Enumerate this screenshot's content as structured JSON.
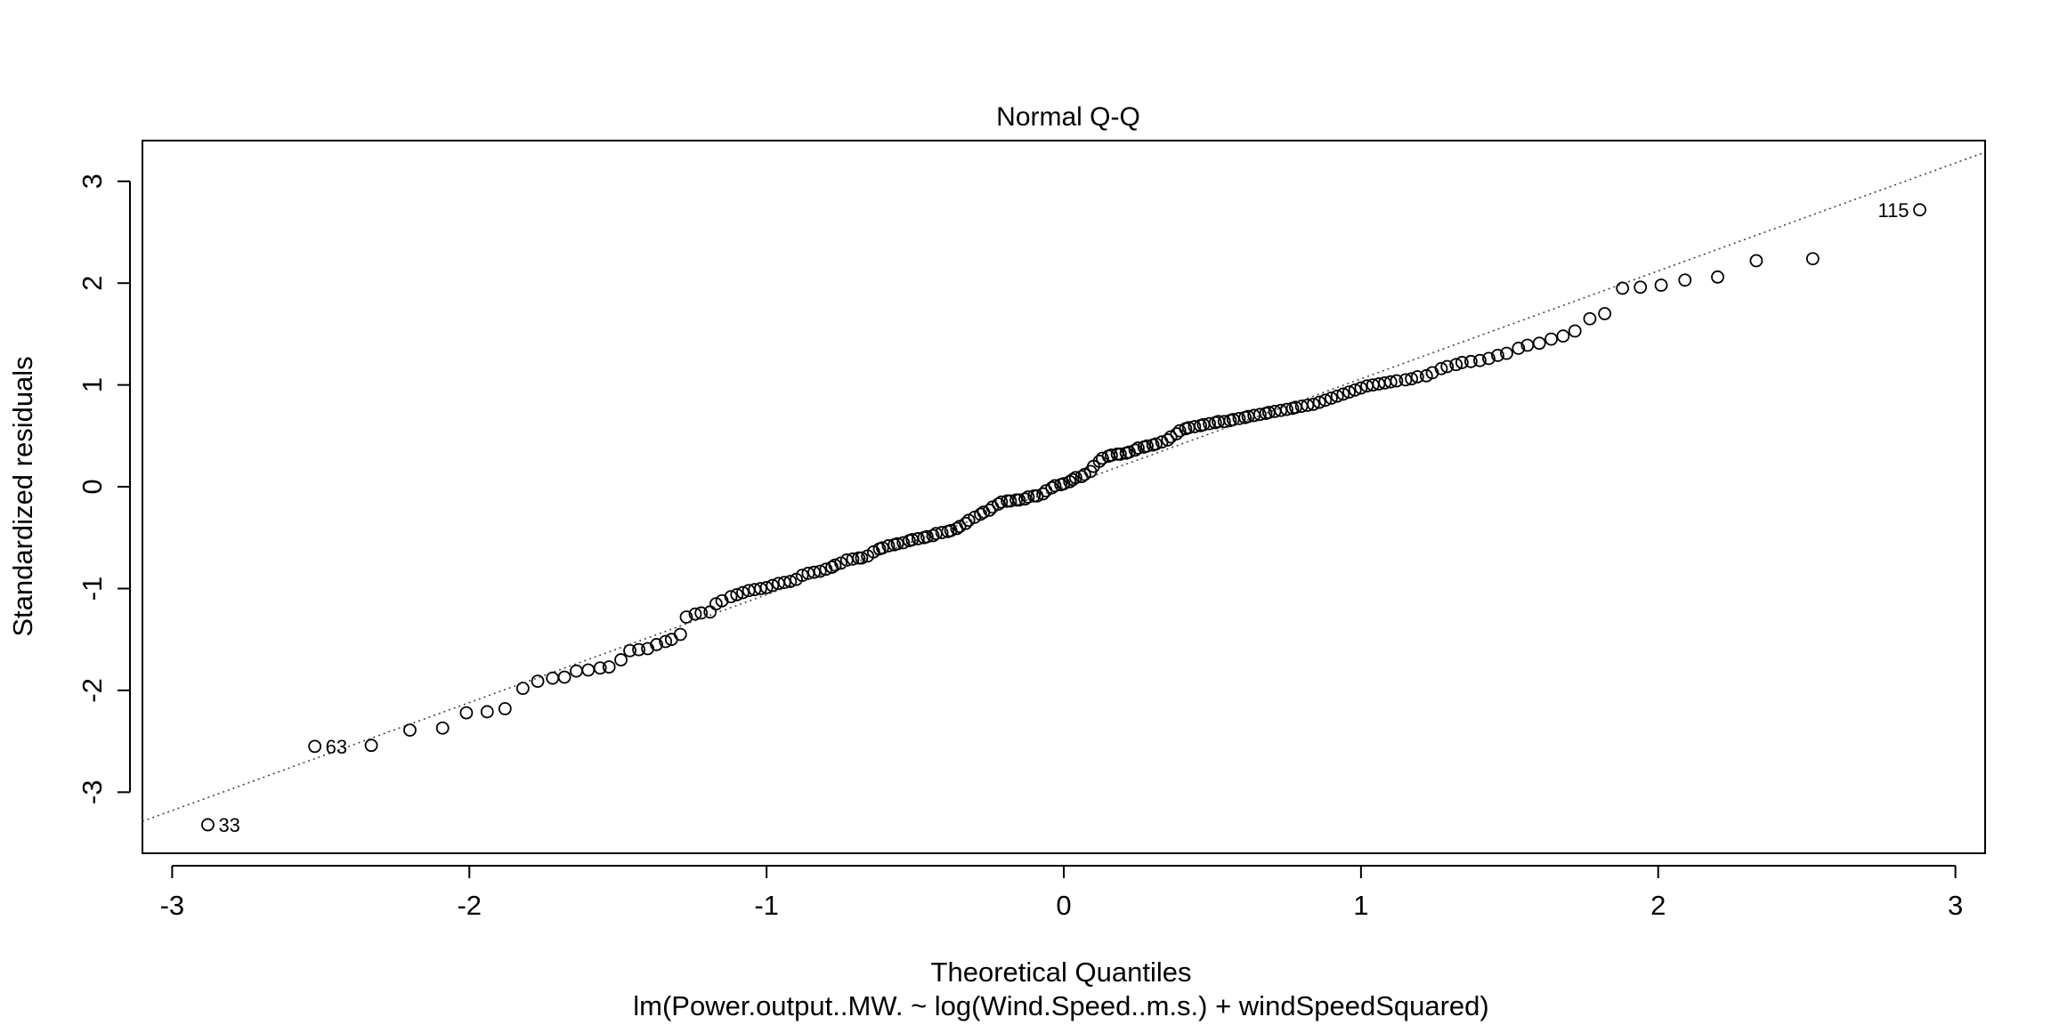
{
  "chart_data": {
    "type": "scatter",
    "title": "Normal Q-Q",
    "xlabel": "Theoretical Quantiles",
    "ylabel": "Standardized residuals",
    "subtitle": "lm(Power.output..MW. ~ log(Wind.Speed..m.s.) + windSpeedSquared)",
    "xlim": [
      -3.1,
      3.1
    ],
    "ylim": [
      -3.6,
      3.4
    ],
    "xticks": [
      "-3",
      "-2",
      "-1",
      "0",
      "1",
      "2",
      "3"
    ],
    "yticks": [
      "-3",
      "-2",
      "-1",
      "0",
      "1",
      "2",
      "3"
    ],
    "grid": false,
    "reference_line": {
      "style": "dotted",
      "intercept": 0.0,
      "slope": 1.06
    },
    "labeled_points": [
      {
        "label": "33",
        "x": -2.88,
        "y": -3.32
      },
      {
        "label": "63",
        "x": -2.52,
        "y": -2.55
      },
      {
        "label": "115",
        "x": 2.88,
        "y": 2.72
      }
    ],
    "points": [
      [
        -2.88,
        -3.32
      ],
      [
        -2.52,
        -2.55
      ],
      [
        -2.33,
        -2.54
      ],
      [
        -2.2,
        -2.39
      ],
      [
        -2.09,
        -2.37
      ],
      [
        -2.01,
        -2.22
      ],
      [
        -1.94,
        -2.21
      ],
      [
        -1.88,
        -2.18
      ],
      [
        -1.82,
        -1.98
      ],
      [
        -1.77,
        -1.91
      ],
      [
        -1.72,
        -1.88
      ],
      [
        -1.68,
        -1.87
      ],
      [
        -1.64,
        -1.81
      ],
      [
        -1.6,
        -1.8
      ],
      [
        -1.56,
        -1.78
      ],
      [
        -1.53,
        -1.77
      ],
      [
        -1.49,
        -1.7
      ],
      [
        -1.46,
        -1.61
      ],
      [
        -1.43,
        -1.6
      ],
      [
        -1.4,
        -1.59
      ],
      [
        -1.37,
        -1.55
      ],
      [
        -1.34,
        -1.52
      ],
      [
        -1.32,
        -1.5
      ],
      [
        -1.29,
        -1.45
      ],
      [
        -1.27,
        -1.28
      ],
      [
        -1.24,
        -1.25
      ],
      [
        -1.22,
        -1.24
      ],
      [
        -1.19,
        -1.23
      ],
      [
        -1.17,
        -1.15
      ],
      [
        -1.15,
        -1.12
      ],
      [
        -1.12,
        -1.08
      ],
      [
        -1.1,
        -1.06
      ],
      [
        -1.08,
        -1.04
      ],
      [
        -1.06,
        -1.02
      ],
      [
        -1.04,
        -1.01
      ],
      [
        -1.02,
        -1.0
      ],
      [
        -1.0,
        -0.99
      ],
      [
        -0.98,
        -0.97
      ],
      [
        -0.96,
        -0.95
      ],
      [
        -0.94,
        -0.94
      ],
      [
        -0.92,
        -0.93
      ],
      [
        -0.9,
        -0.91
      ],
      [
        -0.88,
        -0.87
      ],
      [
        -0.86,
        -0.85
      ],
      [
        -0.84,
        -0.84
      ],
      [
        -0.82,
        -0.83
      ],
      [
        -0.8,
        -0.81
      ],
      [
        -0.78,
        -0.79
      ],
      [
        -0.77,
        -0.77
      ],
      [
        -0.75,
        -0.75
      ],
      [
        -0.73,
        -0.72
      ],
      [
        -0.71,
        -0.71
      ],
      [
        -0.69,
        -0.7
      ],
      [
        -0.68,
        -0.7
      ],
      [
        -0.66,
        -0.68
      ],
      [
        -0.64,
        -0.64
      ],
      [
        -0.62,
        -0.61
      ],
      [
        -0.61,
        -0.6
      ],
      [
        -0.59,
        -0.58
      ],
      [
        -0.57,
        -0.57
      ],
      [
        -0.56,
        -0.56
      ],
      [
        -0.54,
        -0.55
      ],
      [
        -0.52,
        -0.53
      ],
      [
        -0.51,
        -0.52
      ],
      [
        -0.49,
        -0.51
      ],
      [
        -0.47,
        -0.5
      ],
      [
        -0.46,
        -0.49
      ],
      [
        -0.44,
        -0.48
      ],
      [
        -0.43,
        -0.46
      ],
      [
        -0.41,
        -0.45
      ],
      [
        -0.39,
        -0.44
      ],
      [
        -0.38,
        -0.43
      ],
      [
        -0.36,
        -0.41
      ],
      [
        -0.35,
        -0.39
      ],
      [
        -0.33,
        -0.36
      ],
      [
        -0.32,
        -0.33
      ],
      [
        -0.3,
        -0.3
      ],
      [
        -0.28,
        -0.27
      ],
      [
        -0.27,
        -0.25
      ],
      [
        -0.25,
        -0.23
      ],
      [
        -0.24,
        -0.2
      ],
      [
        -0.22,
        -0.17
      ],
      [
        -0.21,
        -0.15
      ],
      [
        -0.19,
        -0.14
      ],
      [
        -0.18,
        -0.14
      ],
      [
        -0.16,
        -0.13
      ],
      [
        -0.15,
        -0.13
      ],
      [
        -0.13,
        -0.12
      ],
      [
        -0.12,
        -0.1
      ],
      [
        -0.1,
        -0.09
      ],
      [
        -0.09,
        -0.09
      ],
      [
        -0.07,
        -0.07
      ],
      [
        -0.06,
        -0.04
      ],
      [
        -0.04,
        -0.01
      ],
      [
        -0.03,
        0.01
      ],
      [
        -0.01,
        0.02
      ],
      [
        0.0,
        0.03
      ],
      [
        0.02,
        0.05
      ],
      [
        0.03,
        0.07
      ],
      [
        0.04,
        0.09
      ],
      [
        0.06,
        0.1
      ],
      [
        0.07,
        0.12
      ],
      [
        0.09,
        0.15
      ],
      [
        0.1,
        0.2
      ],
      [
        0.12,
        0.25
      ],
      [
        0.13,
        0.28
      ],
      [
        0.15,
        0.3
      ],
      [
        0.16,
        0.31
      ],
      [
        0.18,
        0.32
      ],
      [
        0.19,
        0.32
      ],
      [
        0.21,
        0.33
      ],
      [
        0.22,
        0.34
      ],
      [
        0.24,
        0.36
      ],
      [
        0.25,
        0.38
      ],
      [
        0.27,
        0.39
      ],
      [
        0.28,
        0.4
      ],
      [
        0.3,
        0.41
      ],
      [
        0.31,
        0.42
      ],
      [
        0.33,
        0.44
      ],
      [
        0.35,
        0.46
      ],
      [
        0.36,
        0.49
      ],
      [
        0.38,
        0.52
      ],
      [
        0.39,
        0.55
      ],
      [
        0.41,
        0.57
      ],
      [
        0.42,
        0.58
      ],
      [
        0.44,
        0.59
      ],
      [
        0.46,
        0.6
      ],
      [
        0.47,
        0.61
      ],
      [
        0.49,
        0.62
      ],
      [
        0.51,
        0.63
      ],
      [
        0.52,
        0.64
      ],
      [
        0.54,
        0.64
      ],
      [
        0.56,
        0.65
      ],
      [
        0.57,
        0.66
      ],
      [
        0.59,
        0.67
      ],
      [
        0.61,
        0.68
      ],
      [
        0.62,
        0.69
      ],
      [
        0.64,
        0.7
      ],
      [
        0.66,
        0.71
      ],
      [
        0.68,
        0.72
      ],
      [
        0.69,
        0.73
      ],
      [
        0.71,
        0.74
      ],
      [
        0.73,
        0.75
      ],
      [
        0.75,
        0.76
      ],
      [
        0.77,
        0.77
      ],
      [
        0.78,
        0.78
      ],
      [
        0.8,
        0.79
      ],
      [
        0.82,
        0.8
      ],
      [
        0.84,
        0.81
      ],
      [
        0.86,
        0.83
      ],
      [
        0.88,
        0.85
      ],
      [
        0.9,
        0.87
      ],
      [
        0.92,
        0.89
      ],
      [
        0.94,
        0.91
      ],
      [
        0.96,
        0.93
      ],
      [
        0.98,
        0.95
      ],
      [
        1.0,
        0.97
      ],
      [
        1.02,
        0.99
      ],
      [
        1.04,
        1.0
      ],
      [
        1.06,
        1.01
      ],
      [
        1.08,
        1.02
      ],
      [
        1.1,
        1.03
      ],
      [
        1.12,
        1.04
      ],
      [
        1.15,
        1.05
      ],
      [
        1.17,
        1.06
      ],
      [
        1.19,
        1.08
      ],
      [
        1.22,
        1.09
      ],
      [
        1.24,
        1.12
      ],
      [
        1.27,
        1.16
      ],
      [
        1.29,
        1.18
      ],
      [
        1.32,
        1.2
      ],
      [
        1.34,
        1.22
      ],
      [
        1.37,
        1.23
      ],
      [
        1.4,
        1.24
      ],
      [
        1.43,
        1.26
      ],
      [
        1.46,
        1.29
      ],
      [
        1.49,
        1.31
      ],
      [
        1.53,
        1.36
      ],
      [
        1.56,
        1.39
      ],
      [
        1.6,
        1.41
      ],
      [
        1.64,
        1.45
      ],
      [
        1.68,
        1.48
      ],
      [
        1.72,
        1.53
      ],
      [
        1.77,
        1.65
      ],
      [
        1.82,
        1.7
      ],
      [
        1.88,
        1.95
      ],
      [
        1.94,
        1.96
      ],
      [
        2.01,
        1.98
      ],
      [
        2.09,
        2.03
      ],
      [
        2.2,
        2.06
      ],
      [
        2.33,
        2.22
      ],
      [
        2.52,
        2.24
      ],
      [
        2.88,
        2.72
      ]
    ]
  }
}
